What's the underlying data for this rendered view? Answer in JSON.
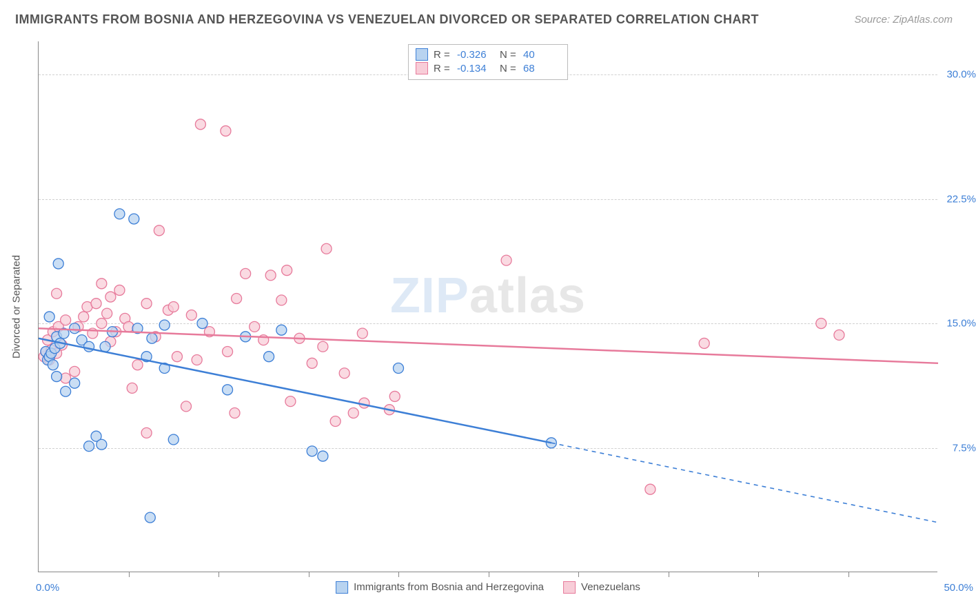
{
  "title": "IMMIGRANTS FROM BOSNIA AND HERZEGOVINA VS VENEZUELAN DIVORCED OR SEPARATED CORRELATION CHART",
  "source": "Source: ZipAtlas.com",
  "watermark_a": "ZIP",
  "watermark_b": "atlas",
  "y_axis": {
    "title": "Divorced or Separated",
    "min": 0.0,
    "max": 32.0,
    "ticks": [
      7.5,
      15.0,
      22.5,
      30.0
    ],
    "tick_labels": [
      "7.5%",
      "15.0%",
      "22.5%",
      "30.0%"
    ]
  },
  "x_axis": {
    "min": 0.0,
    "max": 50.0,
    "label_min": "0.0%",
    "label_max": "50.0%",
    "ticks": [
      5,
      10,
      15,
      20,
      25,
      30,
      35,
      40,
      45
    ]
  },
  "series": [
    {
      "key": "bosnia",
      "label": "Immigrants from Bosnia and Herzegovina",
      "stroke": "#3d7fd6",
      "fill": "#b8d3f0",
      "marker_r": 7.5,
      "r_value": "-0.326",
      "n_value": "40",
      "regression": {
        "x1": 0.0,
        "y1": 14.1,
        "x2": 28.5,
        "y2": 7.8,
        "dash_x2": 50.0,
        "dash_y2": 3.0
      },
      "points": [
        [
          0.4,
          13.3
        ],
        [
          0.5,
          12.8
        ],
        [
          0.6,
          15.4
        ],
        [
          0.6,
          13.0
        ],
        [
          0.7,
          13.2
        ],
        [
          0.8,
          12.5
        ],
        [
          0.9,
          13.5
        ],
        [
          1.0,
          14.2
        ],
        [
          1.0,
          11.8
        ],
        [
          1.1,
          18.6
        ],
        [
          1.2,
          13.8
        ],
        [
          1.4,
          14.4
        ],
        [
          1.5,
          10.9
        ],
        [
          2.0,
          14.7
        ],
        [
          2.0,
          11.4
        ],
        [
          2.4,
          14.0
        ],
        [
          2.8,
          13.6
        ],
        [
          2.8,
          7.6
        ],
        [
          3.2,
          8.2
        ],
        [
          3.5,
          7.7
        ],
        [
          3.7,
          13.6
        ],
        [
          4.1,
          14.5
        ],
        [
          4.5,
          21.6
        ],
        [
          5.3,
          21.3
        ],
        [
          5.5,
          14.7
        ],
        [
          6.0,
          13.0
        ],
        [
          6.2,
          3.3
        ],
        [
          6.3,
          14.1
        ],
        [
          7.0,
          14.9
        ],
        [
          7.0,
          12.3
        ],
        [
          7.5,
          8.0
        ],
        [
          9.1,
          15.0
        ],
        [
          10.5,
          11.0
        ],
        [
          11.5,
          14.2
        ],
        [
          12.8,
          13.0
        ],
        [
          13.5,
          14.6
        ],
        [
          15.2,
          7.3
        ],
        [
          15.8,
          7.0
        ],
        [
          20.0,
          12.3
        ],
        [
          28.5,
          7.8
        ]
      ]
    },
    {
      "key": "venezuelans",
      "label": "Venezuelans",
      "stroke": "#e77a9b",
      "fill": "#f8cdd8",
      "marker_r": 7.5,
      "r_value": "-0.134",
      "n_value": "68",
      "regression": {
        "x1": 0.0,
        "y1": 14.7,
        "x2": 50.0,
        "y2": 12.6
      },
      "points": [
        [
          0.3,
          13.0
        ],
        [
          0.4,
          13.3
        ],
        [
          0.5,
          14.0
        ],
        [
          0.6,
          12.8
        ],
        [
          0.7,
          13.4
        ],
        [
          0.8,
          14.5
        ],
        [
          1.0,
          13.2
        ],
        [
          1.0,
          16.8
        ],
        [
          1.1,
          14.8
        ],
        [
          1.3,
          13.7
        ],
        [
          1.5,
          15.2
        ],
        [
          1.5,
          11.7
        ],
        [
          2.0,
          12.1
        ],
        [
          2.2,
          14.8
        ],
        [
          2.5,
          15.4
        ],
        [
          2.7,
          16.0
        ],
        [
          3.0,
          14.4
        ],
        [
          3.2,
          16.2
        ],
        [
          3.5,
          15.0
        ],
        [
          3.5,
          17.4
        ],
        [
          3.8,
          15.6
        ],
        [
          4.0,
          16.6
        ],
        [
          4.0,
          13.9
        ],
        [
          4.3,
          14.5
        ],
        [
          4.5,
          17.0
        ],
        [
          4.8,
          15.3
        ],
        [
          5.0,
          14.8
        ],
        [
          5.2,
          11.1
        ],
        [
          5.5,
          12.5
        ],
        [
          6.0,
          16.2
        ],
        [
          6.0,
          8.4
        ],
        [
          6.5,
          14.2
        ],
        [
          6.7,
          20.6
        ],
        [
          7.2,
          15.8
        ],
        [
          7.5,
          16.0
        ],
        [
          7.7,
          13.0
        ],
        [
          8.2,
          10.0
        ],
        [
          8.5,
          15.5
        ],
        [
          8.8,
          12.8
        ],
        [
          9.0,
          27.0
        ],
        [
          9.5,
          14.5
        ],
        [
          10.4,
          26.6
        ],
        [
          10.5,
          13.3
        ],
        [
          10.9,
          9.6
        ],
        [
          11.0,
          16.5
        ],
        [
          11.5,
          18.0
        ],
        [
          12.0,
          14.8
        ],
        [
          12.5,
          14.0
        ],
        [
          12.9,
          17.9
        ],
        [
          13.5,
          16.4
        ],
        [
          13.8,
          18.2
        ],
        [
          14.0,
          10.3
        ],
        [
          14.5,
          14.1
        ],
        [
          15.2,
          12.6
        ],
        [
          15.8,
          13.6
        ],
        [
          16.0,
          19.5
        ],
        [
          16.5,
          9.1
        ],
        [
          17.0,
          12.0
        ],
        [
          17.5,
          9.6
        ],
        [
          18.0,
          14.4
        ],
        [
          18.1,
          10.2
        ],
        [
          19.5,
          9.8
        ],
        [
          19.8,
          10.6
        ],
        [
          26.0,
          18.8
        ],
        [
          34.0,
          5.0
        ],
        [
          37.0,
          13.8
        ],
        [
          43.5,
          15.0
        ],
        [
          44.5,
          14.3
        ]
      ]
    }
  ],
  "legend_stats": {
    "r_label": "R =",
    "n_label": "N ="
  },
  "colors": {
    "text_gray": "#555555",
    "axis_blue": "#3d7fd6",
    "grid": "#d0d0d0"
  }
}
